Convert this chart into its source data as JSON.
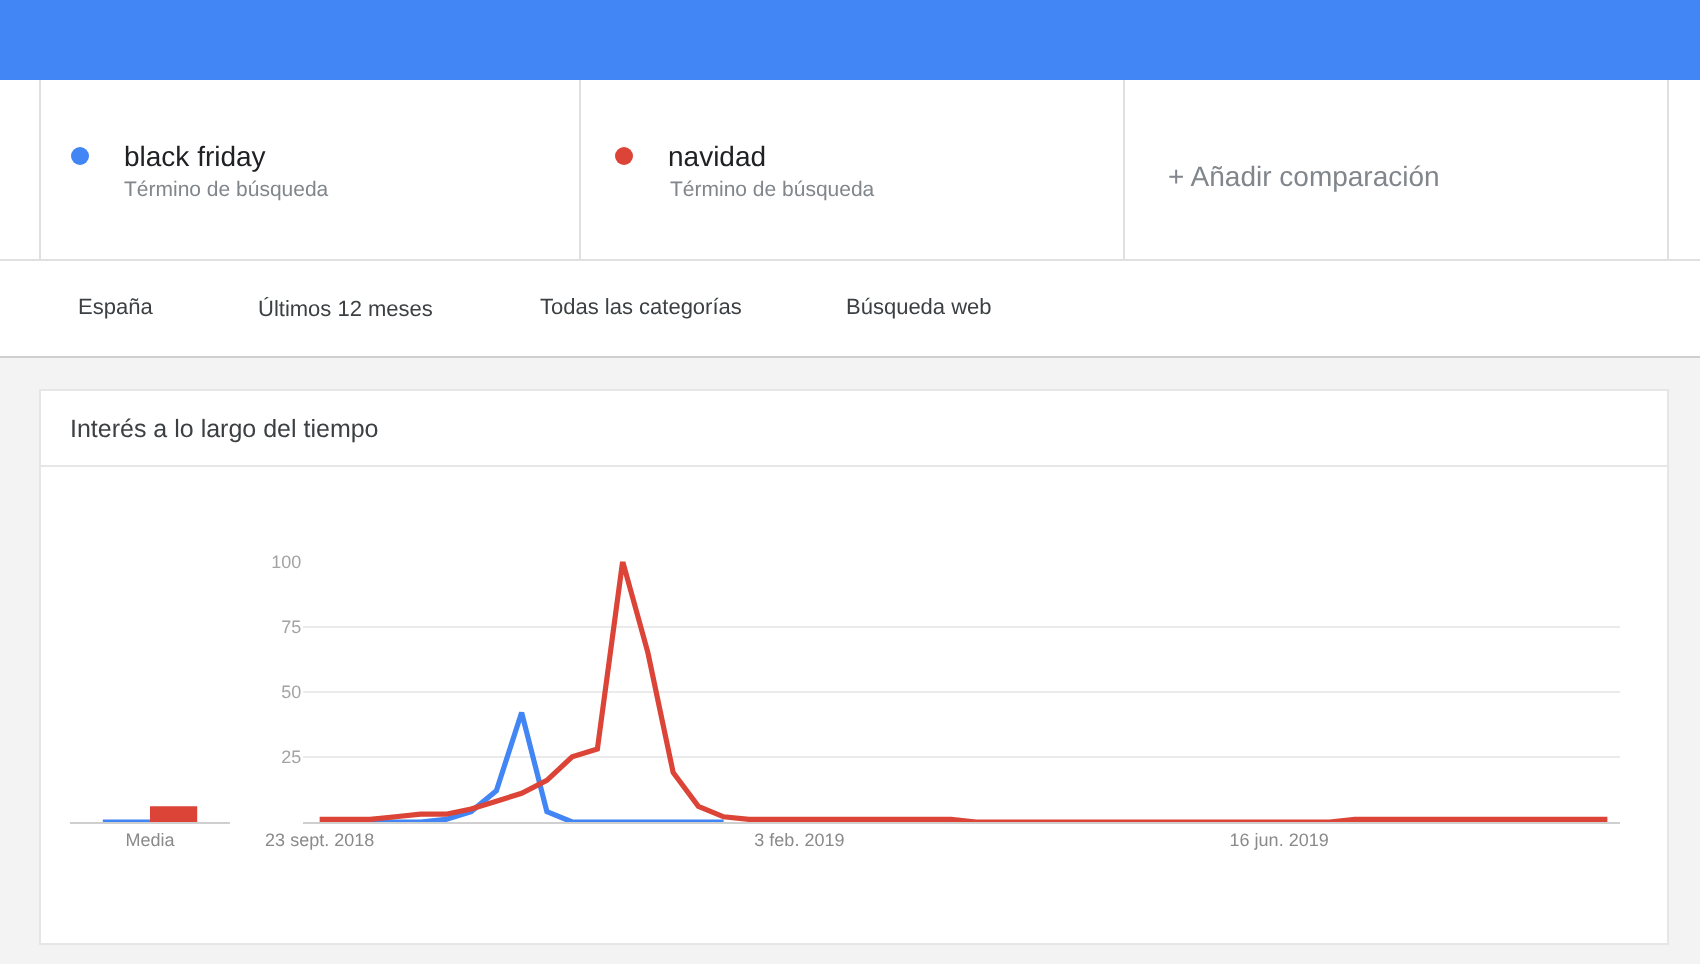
{
  "chart_data": [
    {
      "type": "bar",
      "categories": [
        "Media"
      ],
      "series": [
        {
          "color": "#4285f4",
          "values": [
            1
          ]
        },
        {
          "color": "#db4437",
          "values": [
            6
          ]
        }
      ],
      "ylim": [
        0,
        100
      ],
      "tick_labels": "x"
    },
    {
      "type": "line",
      "title": "Interés a lo largo del tiempo",
      "legend": "top",
      "grid": "y",
      "x": [
        "2018-09-23",
        "2018-09-30",
        "2018-10-07",
        "2018-10-14",
        "2018-10-21",
        "2018-10-28",
        "2018-11-04",
        "2018-11-11",
        "2018-11-18",
        "2018-11-25",
        "2018-12-02",
        "2018-12-09",
        "2018-12-16",
        "2018-12-23",
        "2018-12-30",
        "2019-01-06",
        "2019-01-13",
        "2019-01-20",
        "2019-01-27",
        "2019-02-03",
        "2019-02-10",
        "2019-02-17",
        "2019-02-24",
        "2019-03-03",
        "2019-03-10",
        "2019-03-17",
        "2019-03-24",
        "2019-03-31",
        "2019-04-07",
        "2019-04-14",
        "2019-04-21",
        "2019-04-28",
        "2019-05-05",
        "2019-05-12",
        "2019-05-19",
        "2019-05-26",
        "2019-06-02",
        "2019-06-09",
        "2019-06-16",
        "2019-06-23",
        "2019-06-30",
        "2019-07-07",
        "2019-07-14",
        "2019-07-21",
        "2019-07-28",
        "2019-08-04",
        "2019-08-11",
        "2019-08-18",
        "2019-08-25",
        "2019-09-01",
        "2019-09-08",
        "2019-09-15"
      ],
      "series": [
        {
          "name": "black friday",
          "color": "#4285f4",
          "values": [
            null,
            null,
            0,
            0,
            0,
            1,
            4,
            12,
            42,
            4,
            0,
            0,
            0,
            0,
            0,
            0,
            0,
            null,
            null,
            null,
            null,
            null,
            null,
            null,
            null,
            null,
            null,
            null,
            null,
            null,
            null,
            null,
            null,
            null,
            null,
            null,
            null,
            null,
            null,
            null,
            null,
            null,
            null,
            null,
            null,
            null,
            null,
            null,
            null,
            null,
            null,
            null
          ]
        },
        {
          "name": "navidad",
          "color": "#db4437",
          "values": [
            1,
            1,
            1,
            2,
            3,
            3,
            5,
            8,
            11,
            16,
            25,
            28,
            100,
            65,
            19,
            6,
            2,
            1,
            1,
            1,
            1,
            1,
            1,
            1,
            1,
            1,
            0,
            0,
            0,
            0,
            0,
            0,
            0,
            0,
            0,
            0,
            0,
            0,
            0,
            0,
            0,
            1,
            1,
            1,
            1,
            1,
            1,
            1,
            1,
            1,
            1,
            1
          ]
        }
      ],
      "xlim": [
        "2018-09-18T12:00",
        "2019-09-18T12:00"
      ],
      "xticks": [
        {
          "value": "2018-09-23",
          "label": "23 sept. 2018"
        },
        {
          "value": "2019-02-03",
          "label": "3 feb. 2019"
        },
        {
          "value": "2019-06-16",
          "label": "16 jun. 2019"
        }
      ],
      "ylim": [
        0,
        100
      ],
      "yticks": [
        {
          "value": 0,
          "label": null
        },
        25,
        50,
        75,
        100
      ],
      "annotations": [
        "Término de búsqueda",
        "Término de búsqueda",
        "+ Añadir comparación",
        "España",
        "Últimos 12 meses",
        "Todas las categorías",
        "Búsqueda web"
      ]
    }
  ]
}
